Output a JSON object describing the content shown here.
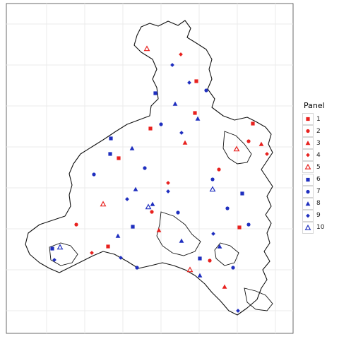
{
  "chart_data": {
    "type": "scatter",
    "title": "",
    "xlabel": "",
    "ylabel": "",
    "grid": true,
    "legend_title": "Panel",
    "legend_placement": "right",
    "colors": {
      "red": "#e8211e",
      "blue": "#1f2fbf"
    },
    "series": [
      {
        "name": "1",
        "color": "#e8211e",
        "shape": "square",
        "points": [
          [
            278,
            115
          ],
          [
            276,
            160
          ],
          [
            213,
            182
          ],
          [
            168,
            224
          ],
          [
            339,
            322
          ],
          [
            153,
            349
          ],
          [
            358,
            175
          ]
        ]
      },
      {
        "name": "2",
        "color": "#e8211e",
        "shape": "circle",
        "points": [
          [
            310,
            240
          ],
          [
            215,
            300
          ],
          [
            108,
            318
          ],
          [
            297,
            369
          ],
          [
            352,
            200
          ]
        ]
      },
      {
        "name": "3",
        "color": "#e8211e",
        "shape": "triangle",
        "points": [
          [
            262,
            202
          ],
          [
            225,
            326
          ],
          [
            318,
            406
          ],
          [
            370,
            204
          ]
        ]
      },
      {
        "name": "4",
        "color": "#e8211e",
        "shape": "diamond",
        "points": [
          [
            256,
            77
          ],
          [
            238,
            259
          ],
          [
            130,
            358
          ],
          [
            378,
            218
          ]
        ]
      },
      {
        "name": "5",
        "color": "#e8211e",
        "shape": "triangle-open",
        "points": [
          [
            208,
            69
          ],
          [
            146,
            289
          ],
          [
            335,
            211
          ],
          [
            269,
            382
          ]
        ]
      },
      {
        "name": "6",
        "color": "#1f2fbf",
        "shape": "square",
        "points": [
          [
            220,
            132
          ],
          [
            157,
            196
          ],
          [
            156,
            218
          ],
          [
            188,
            321
          ],
          [
            343,
            274
          ],
          [
            283,
            366
          ],
          [
            74,
            352
          ]
        ]
      },
      {
        "name": "7",
        "color": "#1f2fbf",
        "shape": "circle",
        "points": [
          [
            228,
            176
          ],
          [
            133,
            247
          ],
          [
            205,
            238
          ],
          [
            301,
            254
          ],
          [
            252,
            301
          ],
          [
            322,
            295
          ],
          [
            352,
            318
          ],
          [
            194,
            379
          ],
          [
            330,
            379
          ],
          [
            292,
            128
          ]
        ]
      },
      {
        "name": "8",
        "color": "#1f2fbf",
        "shape": "triangle",
        "points": [
          [
            248,
            147
          ],
          [
            280,
            168
          ],
          [
            187,
            210
          ],
          [
            192,
            268
          ],
          [
            216,
            289
          ],
          [
            257,
            341
          ],
          [
            311,
            349
          ],
          [
            167,
            334
          ],
          [
            283,
            390
          ]
        ]
      },
      {
        "name": "9",
        "color": "#1f2fbf",
        "shape": "diamond",
        "points": [
          [
            244,
            92
          ],
          [
            268,
            117
          ],
          [
            257,
            188
          ],
          [
            238,
            271
          ],
          [
            180,
            282
          ],
          [
            302,
            331
          ],
          [
            77,
            368
          ],
          [
            171,
            365
          ],
          [
            337,
            440
          ]
        ]
      },
      {
        "name": "10",
        "color": "#1f2fbf",
        "shape": "triangle-open",
        "points": [
          [
            301,
            268
          ],
          [
            210,
            293
          ],
          [
            85,
            350
          ]
        ]
      }
    ]
  }
}
